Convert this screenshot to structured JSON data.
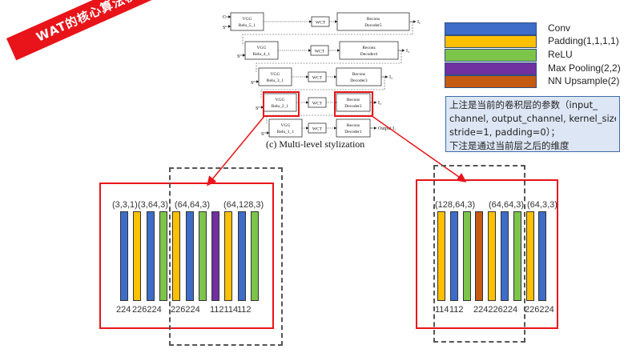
{
  "banner": {
    "text": "WAT的核心算法模型"
  },
  "colors": {
    "conv": "#3d6cc9",
    "padding": "#ffc000",
    "relu": "#7dc44b",
    "maxpool": "#7030a0",
    "upsample": "#c55a11",
    "red": "#e8141a"
  },
  "legend": [
    {
      "label": "Conv",
      "color": "#3d6cc9",
      "icon": "conv-swatch"
    },
    {
      "label": "Padding(1,1,1,1)",
      "color": "#ffc000",
      "icon": "padding-swatch"
    },
    {
      "label": "ReLU",
      "color": "#7dc44b",
      "icon": "relu-swatch"
    },
    {
      "label": "Max Pooling(2,2)",
      "color": "#7030a0",
      "icon": "maxpool-swatch"
    },
    {
      "label": "NN Upsample(2)",
      "color": "#c55a11",
      "icon": "upsample-swatch"
    }
  ],
  "note": {
    "lines": [
      "上注是当前的卷积层的参数（input_",
      "channel, output_channel, kernel_size,",
      "stride=1, padding=0）；",
      "下注是通过当前层之后的维度"
    ]
  },
  "diagram": {
    "caption": "(c) Multi-level stylization",
    "rows": [
      {
        "vgg": "VGG Relu_5_1",
        "wct": "WCT",
        "dec": "Recons Decoder5",
        "out": "I₅",
        "in_c": "C",
        "in_s": "S"
      },
      {
        "vgg": "VGG Relu_4_1",
        "wct": "WCT",
        "dec": "Recons Decoder4",
        "out": "I₄",
        "in_s": "S"
      },
      {
        "vgg": "VGG Relu_3_1",
        "wct": "WCT",
        "dec": "Recons Decoder3",
        "out": "I₃",
        "in_s": "S"
      },
      {
        "vgg": "VGG Relu_2_1",
        "wct": "WCT",
        "dec": "Recons Decoder2",
        "out": "I₂",
        "in_s": "S"
      },
      {
        "vgg": "VGG Relu_1_1",
        "wct": "WCT",
        "dec": "Recons Decoder1",
        "out": "Output I₁",
        "in_s": "S"
      }
    ]
  },
  "encoder": {
    "layers": [
      "conv",
      "padding",
      "conv",
      "relu",
      "padding",
      "conv",
      "relu",
      "maxpool",
      "padding",
      "conv",
      "relu"
    ],
    "params": [
      "(3,3,1)",
      "(3,64,3)",
      "(64,64,3)",
      "(64,128,3)"
    ],
    "dims": [
      "224",
      "226224",
      "226224",
      "112114",
      "112"
    ]
  },
  "decoder": {
    "layers": [
      "padding",
      "conv",
      "relu",
      "upsample",
      "padding",
      "conv",
      "relu",
      "padding",
      "conv"
    ],
    "params": [
      "(128,64,3)",
      "(64,64,3)",
      "(64,3,3)"
    ],
    "dims": [
      "114",
      "112",
      "224226224",
      "226224"
    ]
  }
}
